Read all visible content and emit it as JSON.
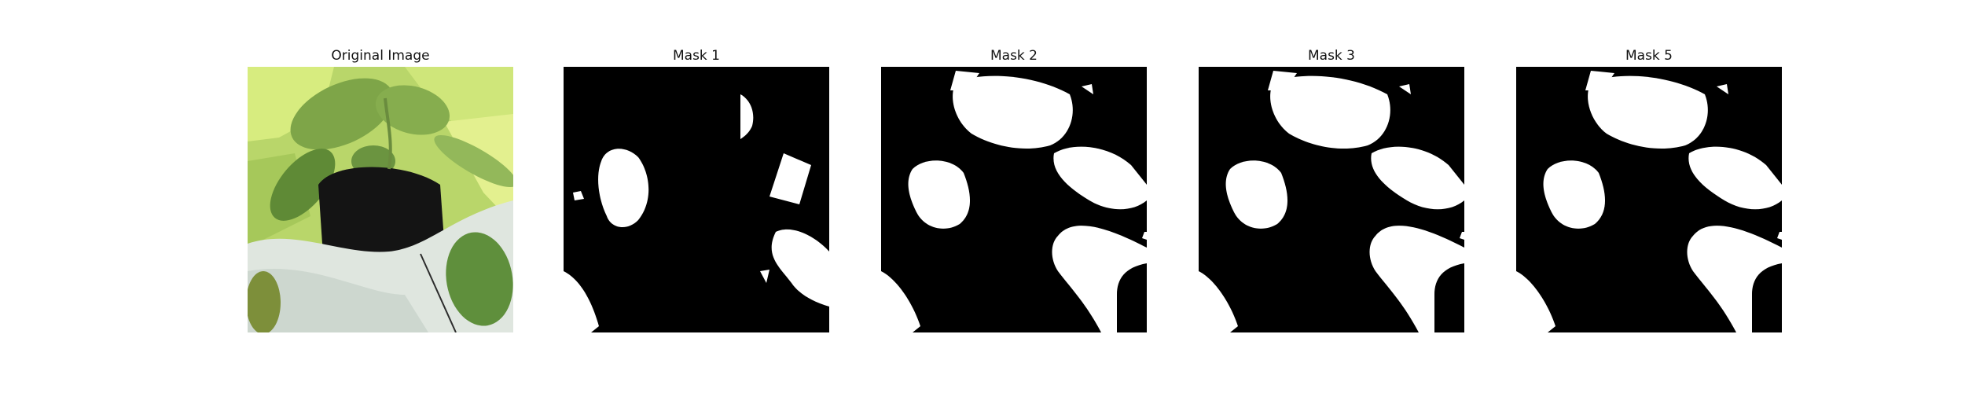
{
  "panels": [
    {
      "title": "Original Image",
      "icon": "plant-photo"
    },
    {
      "title": "Mask 1",
      "icon": "segmentation-mask"
    },
    {
      "title": "Mask 2",
      "icon": "segmentation-mask"
    },
    {
      "title": "Mask 3",
      "icon": "segmentation-mask"
    },
    {
      "title": "Mask 5",
      "icon": "segmentation-mask"
    }
  ],
  "colors": {
    "background": "#ffffff",
    "mask_background": "#000000",
    "mask_foreground": "#ffffff",
    "leaf_light": "#c9e36b",
    "leaf_dark": "#6f9a3c",
    "pot_white": "#dfe6df",
    "pot_dark": "#141414"
  }
}
